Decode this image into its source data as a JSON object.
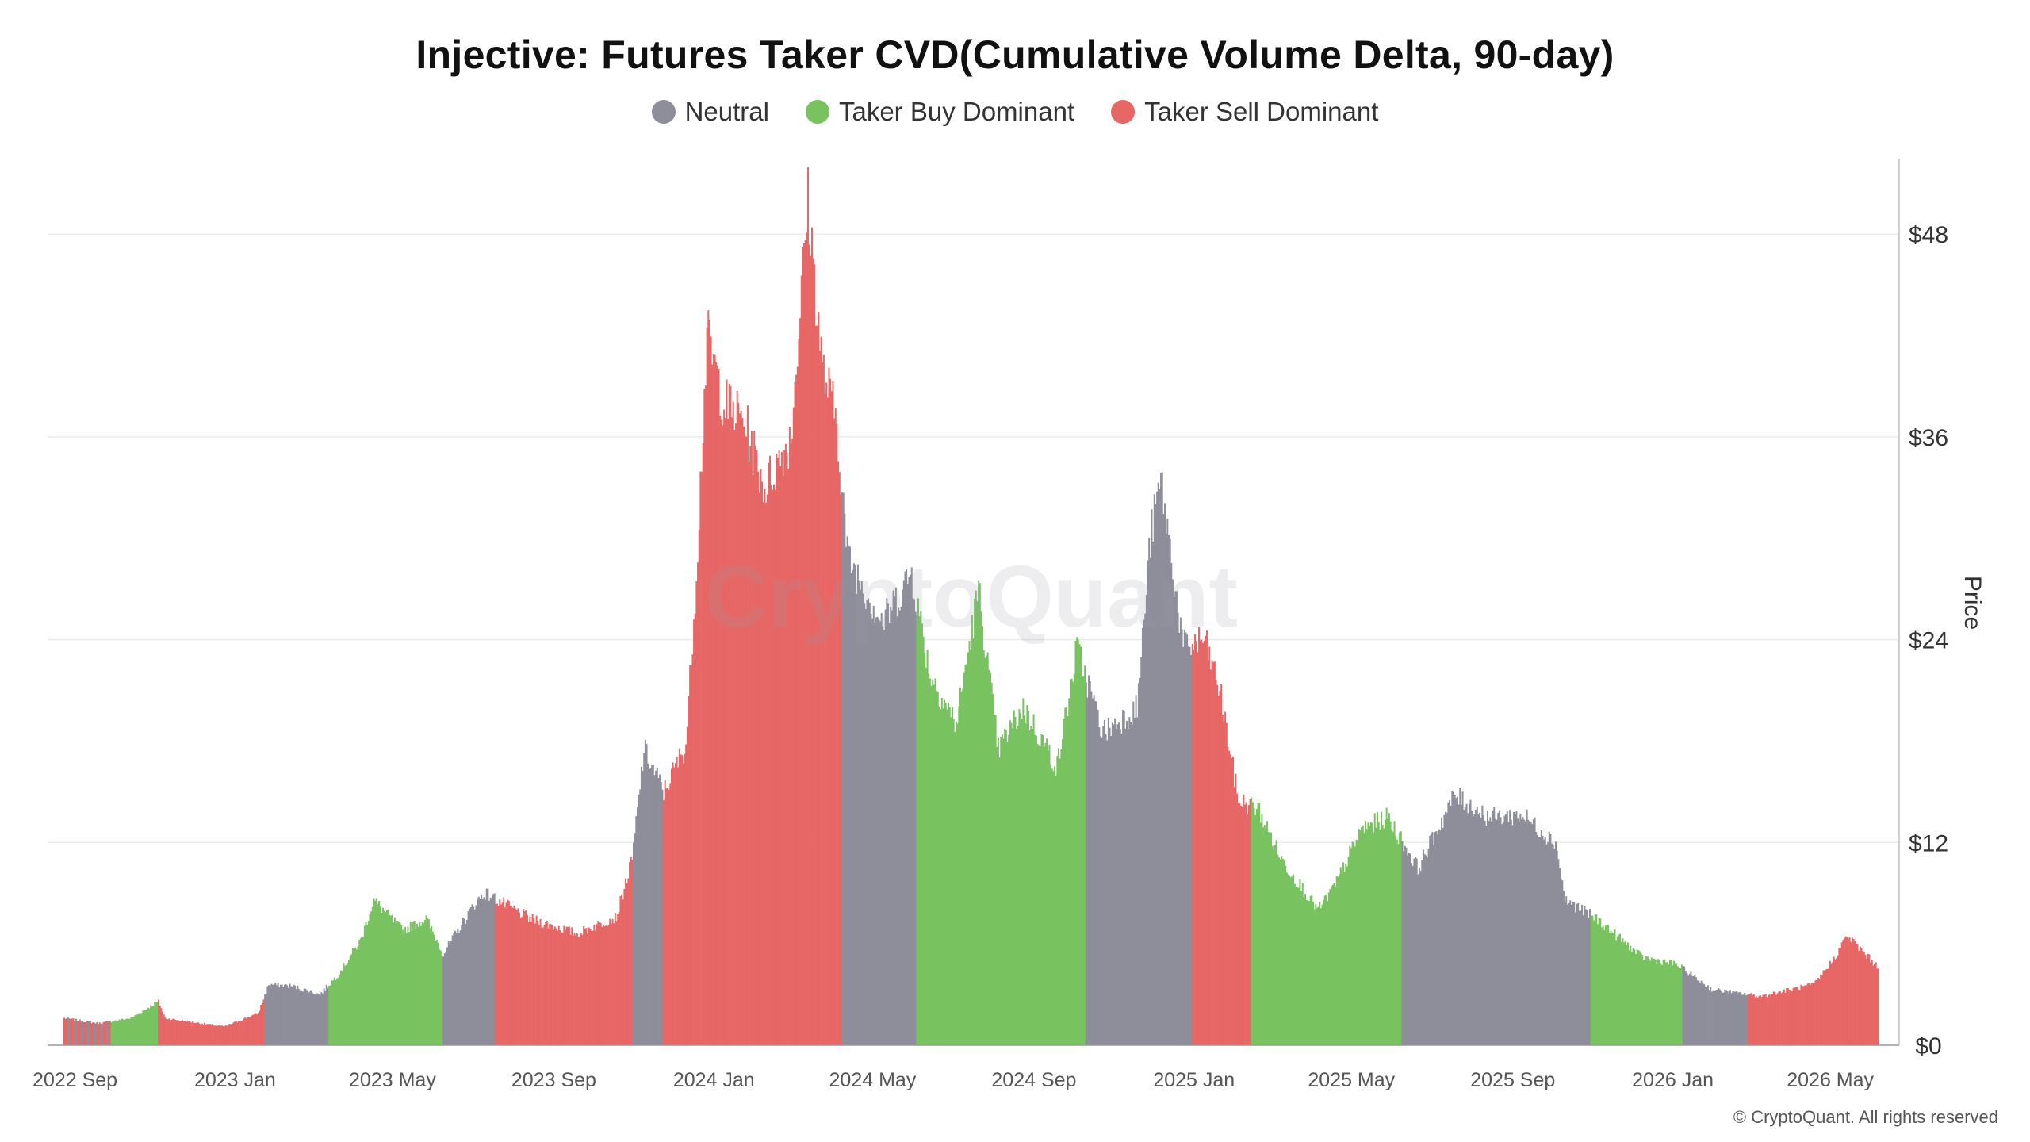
{
  "title": "Injective: Futures Taker CVD(Cumulative Volume Delta, 90-day)",
  "legend": [
    {
      "label": "Neutral",
      "color": "#8e8e9a"
    },
    {
      "label": "Taker Buy Dominant",
      "color": "#78c260"
    },
    {
      "label": "Taker Sell Dominant",
      "color": "#e66766"
    }
  ],
  "watermark": "CryptoQuant",
  "credit": "© CryptoQuant. All rights reserved",
  "chart_data": {
    "type": "bar",
    "ylabel": "Price",
    "y_axis_side": "right",
    "ylim": [
      0,
      52
    ],
    "y_ticks": [
      0,
      12,
      24,
      36,
      48
    ],
    "y_tick_labels": [
      "$0",
      "$12",
      "$24",
      "$36",
      "$48"
    ],
    "x_tick_labels": [
      "2022 Sep",
      "2023 Jan",
      "2023 May",
      "2023 Sep",
      "2024 Jan",
      "2024 May",
      "2024 Sep",
      "2025 Jan",
      "2025 May",
      "2025 Sep",
      "2026 Jan",
      "2026 May"
    ],
    "grid": "horizontal",
    "price_points": [
      [
        "2022-08-25",
        1.6
      ],
      [
        "2022-09-20",
        1.3
      ],
      [
        "2022-10-15",
        1.6
      ],
      [
        "2022-11-05",
        2.6
      ],
      [
        "2022-11-10",
        1.6
      ],
      [
        "2022-12-25",
        1.1
      ],
      [
        "2023-01-20",
        1.9
      ],
      [
        "2023-01-28",
        3.6
      ],
      [
        "2023-02-15",
        3.5
      ],
      [
        "2023-03-08",
        3.0
      ],
      [
        "2023-03-22",
        4.2
      ],
      [
        "2023-04-08",
        6.2
      ],
      [
        "2023-04-18",
        8.6
      ],
      [
        "2023-05-10",
        6.8
      ],
      [
        "2023-05-28",
        7.5
      ],
      [
        "2023-06-10",
        5.4
      ],
      [
        "2023-07-05",
        8.5
      ],
      [
        "2023-07-12",
        9.0
      ],
      [
        "2023-08-15",
        7.5
      ],
      [
        "2023-09-20",
        6.6
      ],
      [
        "2023-10-20",
        7.6
      ],
      [
        "2023-11-01",
        11.0
      ],
      [
        "2023-11-10",
        17.5
      ],
      [
        "2023-11-25",
        15.0
      ],
      [
        "2023-12-12",
        17.8
      ],
      [
        "2023-12-20",
        28.0
      ],
      [
        "2023-12-28",
        42.0
      ],
      [
        "2024-01-10",
        38.0
      ],
      [
        "2024-01-25",
        37.0
      ],
      [
        "2024-02-10",
        33.0
      ],
      [
        "2024-03-01",
        36.0
      ],
      [
        "2024-03-14",
        50.0
      ],
      [
        "2024-03-25",
        40.0
      ],
      [
        "2024-04-05",
        37.0
      ],
      [
        "2024-04-13",
        29.0
      ],
      [
        "2024-05-10",
        25.0
      ],
      [
        "2024-06-01",
        28.0
      ],
      [
        "2024-06-15",
        22.0
      ],
      [
        "2024-07-05",
        19.0
      ],
      [
        "2024-07-22",
        27.0
      ],
      [
        "2024-08-06",
        17.5
      ],
      [
        "2024-08-25",
        20.0
      ],
      [
        "2024-09-20",
        16.5
      ],
      [
        "2024-10-05",
        23.5
      ],
      [
        "2024-10-25",
        18.5
      ],
      [
        "2024-11-20",
        20.0
      ],
      [
        "2024-11-30",
        30.0
      ],
      [
        "2024-12-08",
        33.5
      ],
      [
        "2024-12-25",
        23.5
      ],
      [
        "2025-01-10",
        24.0
      ],
      [
        "2025-01-22",
        21.0
      ],
      [
        "2025-02-05",
        14.5
      ],
      [
        "2025-02-20",
        14.0
      ],
      [
        "2025-03-10",
        11.0
      ],
      [
        "2025-04-07",
        8.0
      ],
      [
        "2025-04-20",
        9.5
      ],
      [
        "2025-05-10",
        12.8
      ],
      [
        "2025-05-30",
        13.5
      ],
      [
        "2025-06-22",
        10.5
      ],
      [
        "2025-07-20",
        14.8
      ],
      [
        "2025-08-15",
        13.5
      ],
      [
        "2025-09-10",
        13.6
      ],
      [
        "2025-10-05",
        12.0
      ],
      [
        "2025-10-12",
        8.6
      ],
      [
        "2025-11-05",
        7.5
      ],
      [
        "2025-12-10",
        5.2
      ],
      [
        "2026-01-05",
        4.8
      ],
      [
        "2026-02-01",
        3.3
      ],
      [
        "2026-03-10",
        2.9
      ],
      [
        "2026-04-20",
        3.6
      ],
      [
        "2026-05-05",
        5.1
      ],
      [
        "2026-05-15",
        6.5
      ],
      [
        "2026-06-08",
        4.6
      ]
    ],
    "regimes": [
      [
        "2022-08-25",
        "2022-09-30",
        "mixed"
      ],
      [
        "2022-09-30",
        "2022-11-05",
        "buy"
      ],
      [
        "2022-11-05",
        "2023-01-25",
        "sell"
      ],
      [
        "2023-01-25",
        "2023-03-15",
        "neutral"
      ],
      [
        "2023-03-15",
        "2023-06-10",
        "buy"
      ],
      [
        "2023-06-10",
        "2023-07-20",
        "neutral"
      ],
      [
        "2023-07-20",
        "2023-11-02",
        "sell"
      ],
      [
        "2023-11-02",
        "2023-11-25",
        "neutral"
      ],
      [
        "2023-11-25",
        "2024-04-09",
        "sell"
      ],
      [
        "2024-04-09",
        "2024-06-05",
        "neutral"
      ],
      [
        "2024-06-05",
        "2024-10-12",
        "buy"
      ],
      [
        "2024-10-12",
        "2025-01-01",
        "neutral"
      ],
      [
        "2025-01-01",
        "2025-02-15",
        "sell"
      ],
      [
        "2025-02-15",
        "2025-06-10",
        "buy"
      ],
      [
        "2025-06-10",
        "2025-11-01",
        "neutral"
      ],
      [
        "2025-11-01",
        "2026-01-10",
        "buy"
      ],
      [
        "2026-01-10",
        "2026-03-01",
        "neutral"
      ],
      [
        "2026-03-01",
        "2026-06-08",
        "sell"
      ]
    ]
  }
}
